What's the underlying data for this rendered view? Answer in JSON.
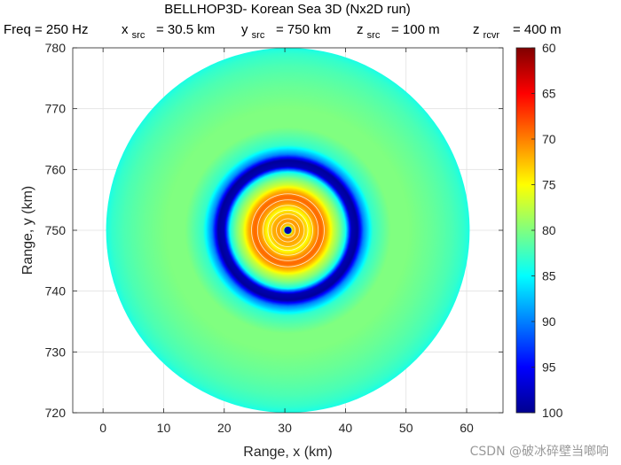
{
  "chart_data": {
    "type": "heatmap",
    "title": "BELLHOP3D- Korean Sea 3D (Nx2D run)",
    "subtitle_parts": [
      {
        "name": "freq",
        "text": "Freq = 250 Hz"
      },
      {
        "name": "xsrc",
        "base": "x",
        "sub": "src",
        "text": "= 30.5 km"
      },
      {
        "name": "ysrc",
        "base": "y",
        "sub": "src",
        "text": "= 750 km"
      },
      {
        "name": "zsrc",
        "base": "z",
        "sub": "src",
        "text": "= 100 m"
      },
      {
        "name": "zrcvr",
        "base": "z",
        "sub": "rcvr",
        "text": "= 400 m"
      }
    ],
    "xlabel": "Range, x (km)",
    "ylabel": "Range, y (km)",
    "xlim": [
      -5,
      66
    ],
    "ylim": [
      720,
      780
    ],
    "xticks": [
      0,
      10,
      20,
      30,
      40,
      50,
      60
    ],
    "yticks": [
      720,
      730,
      740,
      750,
      760,
      770,
      780
    ],
    "grid": true,
    "colorbar": {
      "colormap": "jet",
      "reversed": true,
      "clim": [
        60,
        100
      ],
      "ticks": [
        60,
        65,
        70,
        75,
        80,
        85,
        90,
        95,
        100
      ],
      "placement": "right"
    },
    "field": {
      "description": "transmission loss (dB) vs range from source",
      "center_x": 30.5,
      "center_y": 750,
      "max_range_km": 30,
      "profile_radius_km": [
        0,
        0.4,
        0.8,
        1.5,
        2.5,
        3.5,
        4.5,
        5.5,
        6.5,
        7.5,
        8.5,
        9.5,
        10.5,
        11.5,
        12.5,
        14,
        17,
        20,
        24,
        27,
        29,
        30
      ],
      "profile_tl_db": [
        98,
        90,
        73,
        71,
        72,
        75,
        71,
        69,
        72,
        77,
        80,
        84,
        98,
        99,
        90,
        83,
        80,
        80,
        81,
        82,
        83,
        84
      ]
    }
  },
  "watermark": "CSDN @破冰碎壁当啷响"
}
